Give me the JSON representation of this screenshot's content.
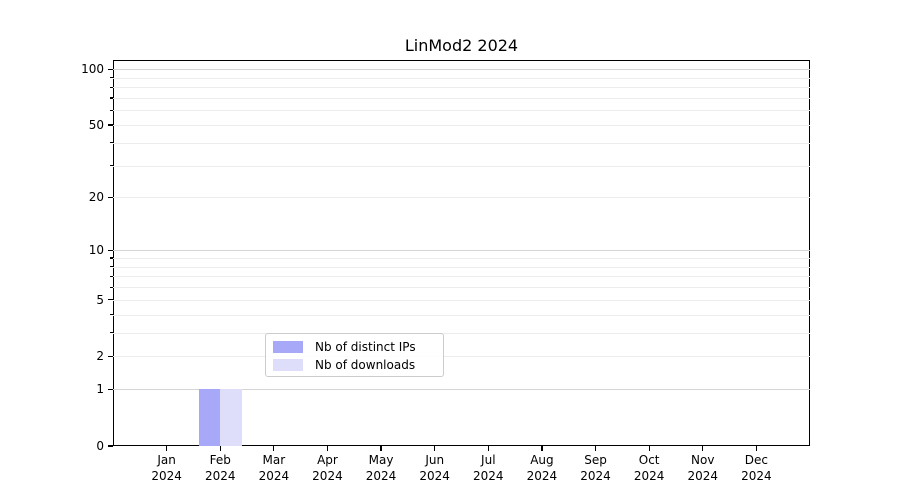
{
  "chart_data": {
    "type": "bar",
    "title": "LinMod2 2024",
    "x_tick_months": [
      "Jan",
      "Feb",
      "Mar",
      "Apr",
      "May",
      "Jun",
      "Jul",
      "Aug",
      "Sep",
      "Oct",
      "Nov",
      "Dec"
    ],
    "x_tick_year": "2024",
    "categories": [
      "Jan 2024",
      "Feb 2024",
      "Mar 2024",
      "Apr 2024",
      "May 2024",
      "Jun 2024",
      "Jul 2024",
      "Aug 2024",
      "Sep 2024",
      "Oct 2024",
      "Nov 2024",
      "Dec 2024"
    ],
    "series": [
      {
        "name": "Nb of distinct IPs",
        "color": "#a8a8f8",
        "values": [
          0,
          1,
          0,
          0,
          0,
          0,
          0,
          0,
          0,
          0,
          0,
          0
        ]
      },
      {
        "name": "Nb of downloads",
        "color": "#dedefa",
        "values": [
          0,
          1,
          0,
          0,
          0,
          0,
          0,
          0,
          0,
          0,
          0,
          0
        ]
      }
    ],
    "xlabel": "",
    "ylabel": "",
    "y_scale": "log1p",
    "ylim": [
      0,
      112
    ],
    "y_ticks": [
      0,
      1,
      2,
      5,
      10,
      20,
      50,
      100
    ],
    "grid": {
      "on": true,
      "major_values": [
        1,
        10,
        100
      ],
      "minor_values": [
        2,
        3,
        4,
        5,
        6,
        7,
        8,
        9,
        20,
        30,
        40,
        50,
        60,
        70,
        80,
        90
      ],
      "major_color": "#d5d5d5",
      "minor_color": "#ececec"
    },
    "legend": {
      "position": "lower center",
      "entries": [
        "Nb of distinct IPs",
        "Nb of downloads"
      ]
    },
    "colors": {
      "axis": "#000000",
      "background": "#ffffff",
      "bar_distinct_ips": "#a8a8f8",
      "bar_downloads": "#dedefa"
    }
  }
}
